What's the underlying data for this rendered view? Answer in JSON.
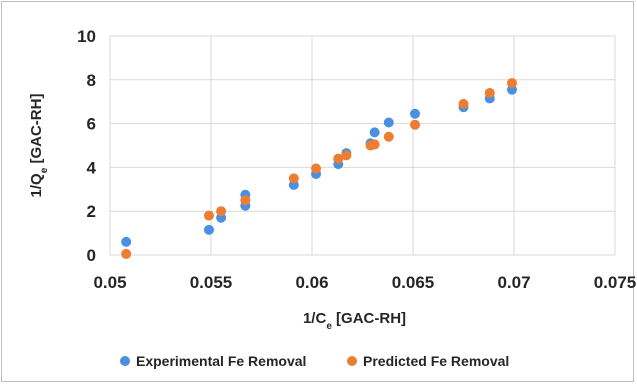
{
  "chart_data": {
    "type": "scatter",
    "xlabel": {
      "main": "1/C",
      "sub": "e",
      "rest": " [GAC-RH]"
    },
    "ylabel": {
      "main": "1/Q",
      "sub": "e",
      "rest": " [GAC-RH]"
    },
    "xlim": [
      0.05,
      0.075
    ],
    "ylim": [
      0,
      10
    ],
    "xticks": [
      "0.05",
      "0.055",
      "0.06",
      "0.065",
      "0.07",
      "0.075"
    ],
    "yticks": [
      "0",
      "2",
      "4",
      "6",
      "8",
      "10"
    ],
    "grid": true,
    "legend_position": "bottom",
    "series": [
      {
        "name": "Experimental Fe Removal",
        "color": "#4a90e2",
        "points": [
          [
            0.0508,
            0.6
          ],
          [
            0.0549,
            1.15
          ],
          [
            0.0555,
            1.7
          ],
          [
            0.0567,
            2.25
          ],
          [
            0.0567,
            2.75
          ],
          [
            0.0591,
            3.2
          ],
          [
            0.0602,
            3.7
          ],
          [
            0.0613,
            4.15
          ],
          [
            0.0617,
            4.65
          ],
          [
            0.0629,
            5.1
          ],
          [
            0.0631,
            5.6
          ],
          [
            0.0638,
            6.05
          ],
          [
            0.0651,
            6.45
          ],
          [
            0.0675,
            6.75
          ],
          [
            0.0688,
            7.15
          ],
          [
            0.0699,
            7.55
          ]
        ]
      },
      {
        "name": "Predicted Fe Removal",
        "color": "#ed7d31",
        "points": [
          [
            0.0508,
            0.05
          ],
          [
            0.0549,
            1.8
          ],
          [
            0.0555,
            2.0
          ],
          [
            0.0567,
            2.5
          ],
          [
            0.0591,
            3.5
          ],
          [
            0.0602,
            3.95
          ],
          [
            0.0613,
            4.4
          ],
          [
            0.0617,
            4.55
          ],
          [
            0.0629,
            5.0
          ],
          [
            0.0631,
            5.05
          ],
          [
            0.0638,
            5.4
          ],
          [
            0.0651,
            5.95
          ],
          [
            0.0675,
            6.9
          ],
          [
            0.0688,
            7.4
          ],
          [
            0.0699,
            7.85
          ]
        ]
      }
    ]
  }
}
